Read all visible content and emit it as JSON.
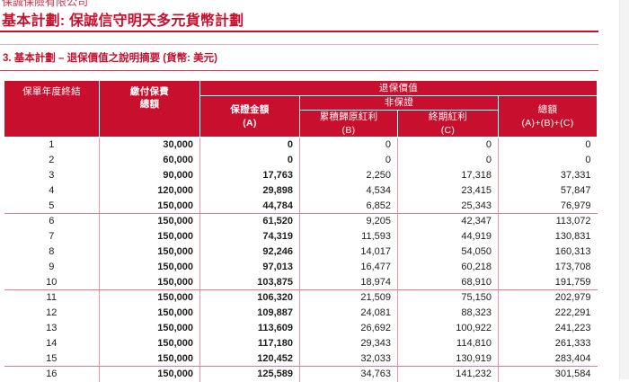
{
  "colors": {
    "brand_red": "#C8102E"
  },
  "page": {
    "company": "保誠保險有限公司",
    "title": "基本計劃: 保誠信守明天多元貨幣計劃",
    "section_heading": "3.  基本計劃 – 退保價值之說明摘要 (貨幣: 美元)"
  },
  "table": {
    "headers": {
      "policy_year": "保單年度終結",
      "premiums_line1": "繳付保費",
      "premiums_line2": "總額",
      "surrender_value": "退保價值",
      "guaranteed_line1": "保證金額",
      "guaranteed_line2": "(A)",
      "non_guaranteed": "非保證",
      "reversionary_line1": "累積歸原紅利",
      "reversionary_line2": "(B)",
      "terminal_line1": "終期紅利",
      "terminal_line2": "(C)",
      "total_line1": "總額",
      "total_line2": "(A)+(B)+(C)"
    },
    "rows": [
      [
        "1",
        "30,000",
        "0",
        "0",
        "0",
        "0"
      ],
      [
        "2",
        "60,000",
        "0",
        "0",
        "0",
        "0"
      ],
      [
        "3",
        "90,000",
        "17,763",
        "2,250",
        "17,318",
        "37,331"
      ],
      [
        "4",
        "120,000",
        "29,898",
        "4,534",
        "23,415",
        "57,847"
      ],
      [
        "5",
        "150,000",
        "44,784",
        "6,852",
        "25,343",
        "76,979"
      ],
      [
        "6",
        "150,000",
        "61,520",
        "9,205",
        "42,347",
        "113,072"
      ],
      [
        "7",
        "150,000",
        "74,319",
        "11,593",
        "44,919",
        "130,831"
      ],
      [
        "8",
        "150,000",
        "92,246",
        "14,017",
        "54,050",
        "160,313"
      ],
      [
        "9",
        "150,000",
        "97,013",
        "16,477",
        "60,218",
        "173,708"
      ],
      [
        "10",
        "150,000",
        "103,875",
        "18,974",
        "68,910",
        "191,759"
      ],
      [
        "11",
        "150,000",
        "106,320",
        "21,509",
        "75,150",
        "202,979"
      ],
      [
        "12",
        "150,000",
        "109,887",
        "24,081",
        "88,323",
        "222,291"
      ],
      [
        "13",
        "150,000",
        "113,609",
        "26,692",
        "100,922",
        "241,223"
      ],
      [
        "14",
        "150,000",
        "117,180",
        "29,343",
        "114,810",
        "261,333"
      ],
      [
        "15",
        "150,000",
        "120,452",
        "32,033",
        "130,919",
        "283,404"
      ],
      [
        "16",
        "150,000",
        "125,589",
        "34,763",
        "141,232",
        "301,584"
      ]
    ]
  }
}
